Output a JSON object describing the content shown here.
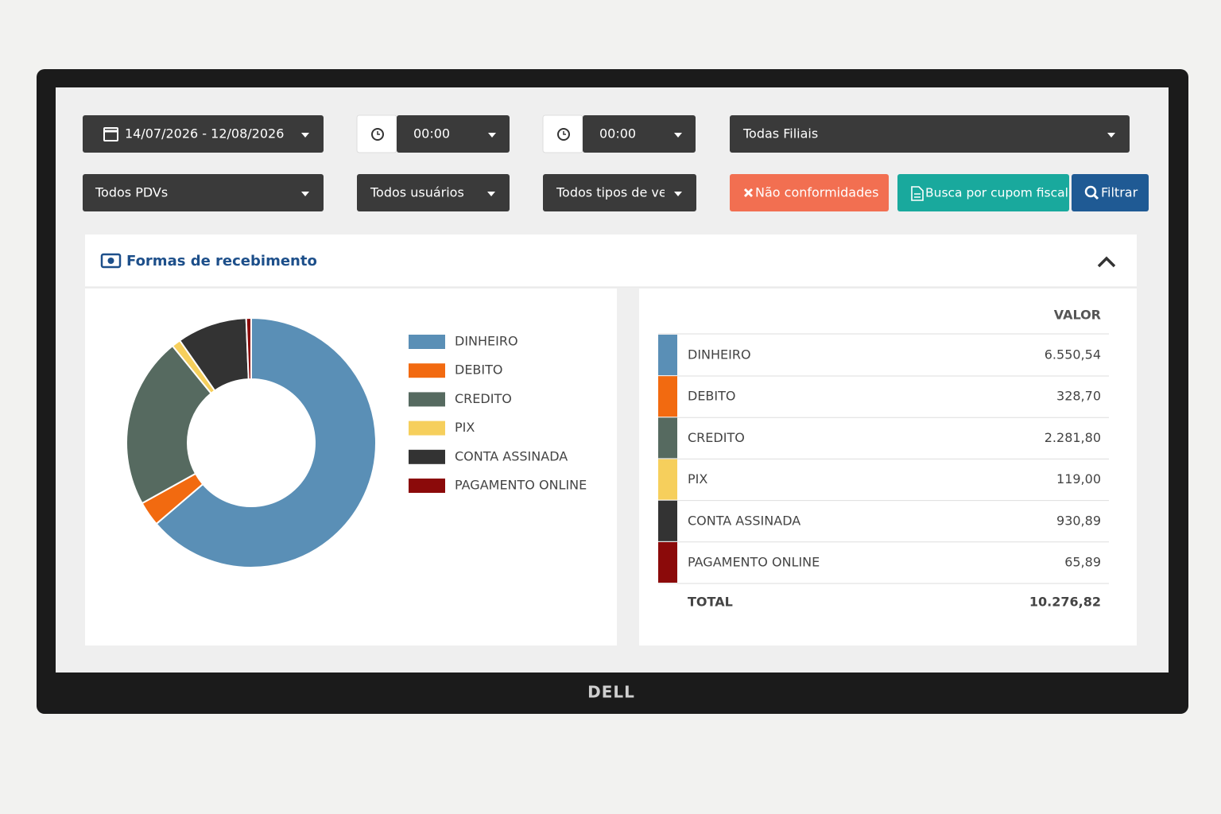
{
  "filters": {
    "date_range": "14/07/2026 - 12/08/2026",
    "time_start": "00:00",
    "time_end": "00:00",
    "branch": "Todas Filiais",
    "pdv": "Todos PDVs",
    "users": "Todos usuários",
    "sale_types": "Todos tipos de ve"
  },
  "buttons": {
    "nonconformities": "Não conformidades",
    "receipt_search": "Busca por cupom fiscal",
    "filter": "Filtrar"
  },
  "panel": {
    "title": "Formas de recebimento"
  },
  "chart_data": {
    "type": "donut",
    "categories": [
      "DINHEIRO",
      "DEBITO",
      "CREDITO",
      "PIX",
      "CONTA ASSINADA",
      "PAGAMENTO ONLINE"
    ],
    "values": [
      6550.54,
      328.7,
      2281.8,
      119.0,
      930.89,
      65.89
    ],
    "colors": [
      "#5a8fb6",
      "#f26a10",
      "#566a60",
      "#f6cf5c",
      "#333333",
      "#8b0a0a"
    ]
  },
  "table": {
    "header": "VALOR",
    "rows": [
      [
        "DINHEIRO",
        "6.550,54"
      ],
      [
        "DEBITO",
        "328,70"
      ],
      [
        "CREDITO",
        "2.281,80"
      ],
      [
        "PIX",
        "119,00"
      ],
      [
        "CONTA ASSINADA",
        "930,89"
      ],
      [
        "PAGAMENTO ONLINE",
        "65,89"
      ]
    ],
    "total": {
      "label": "TOTAL",
      "value": "10.276,82"
    }
  },
  "monitor": {
    "brand": "DELL"
  }
}
